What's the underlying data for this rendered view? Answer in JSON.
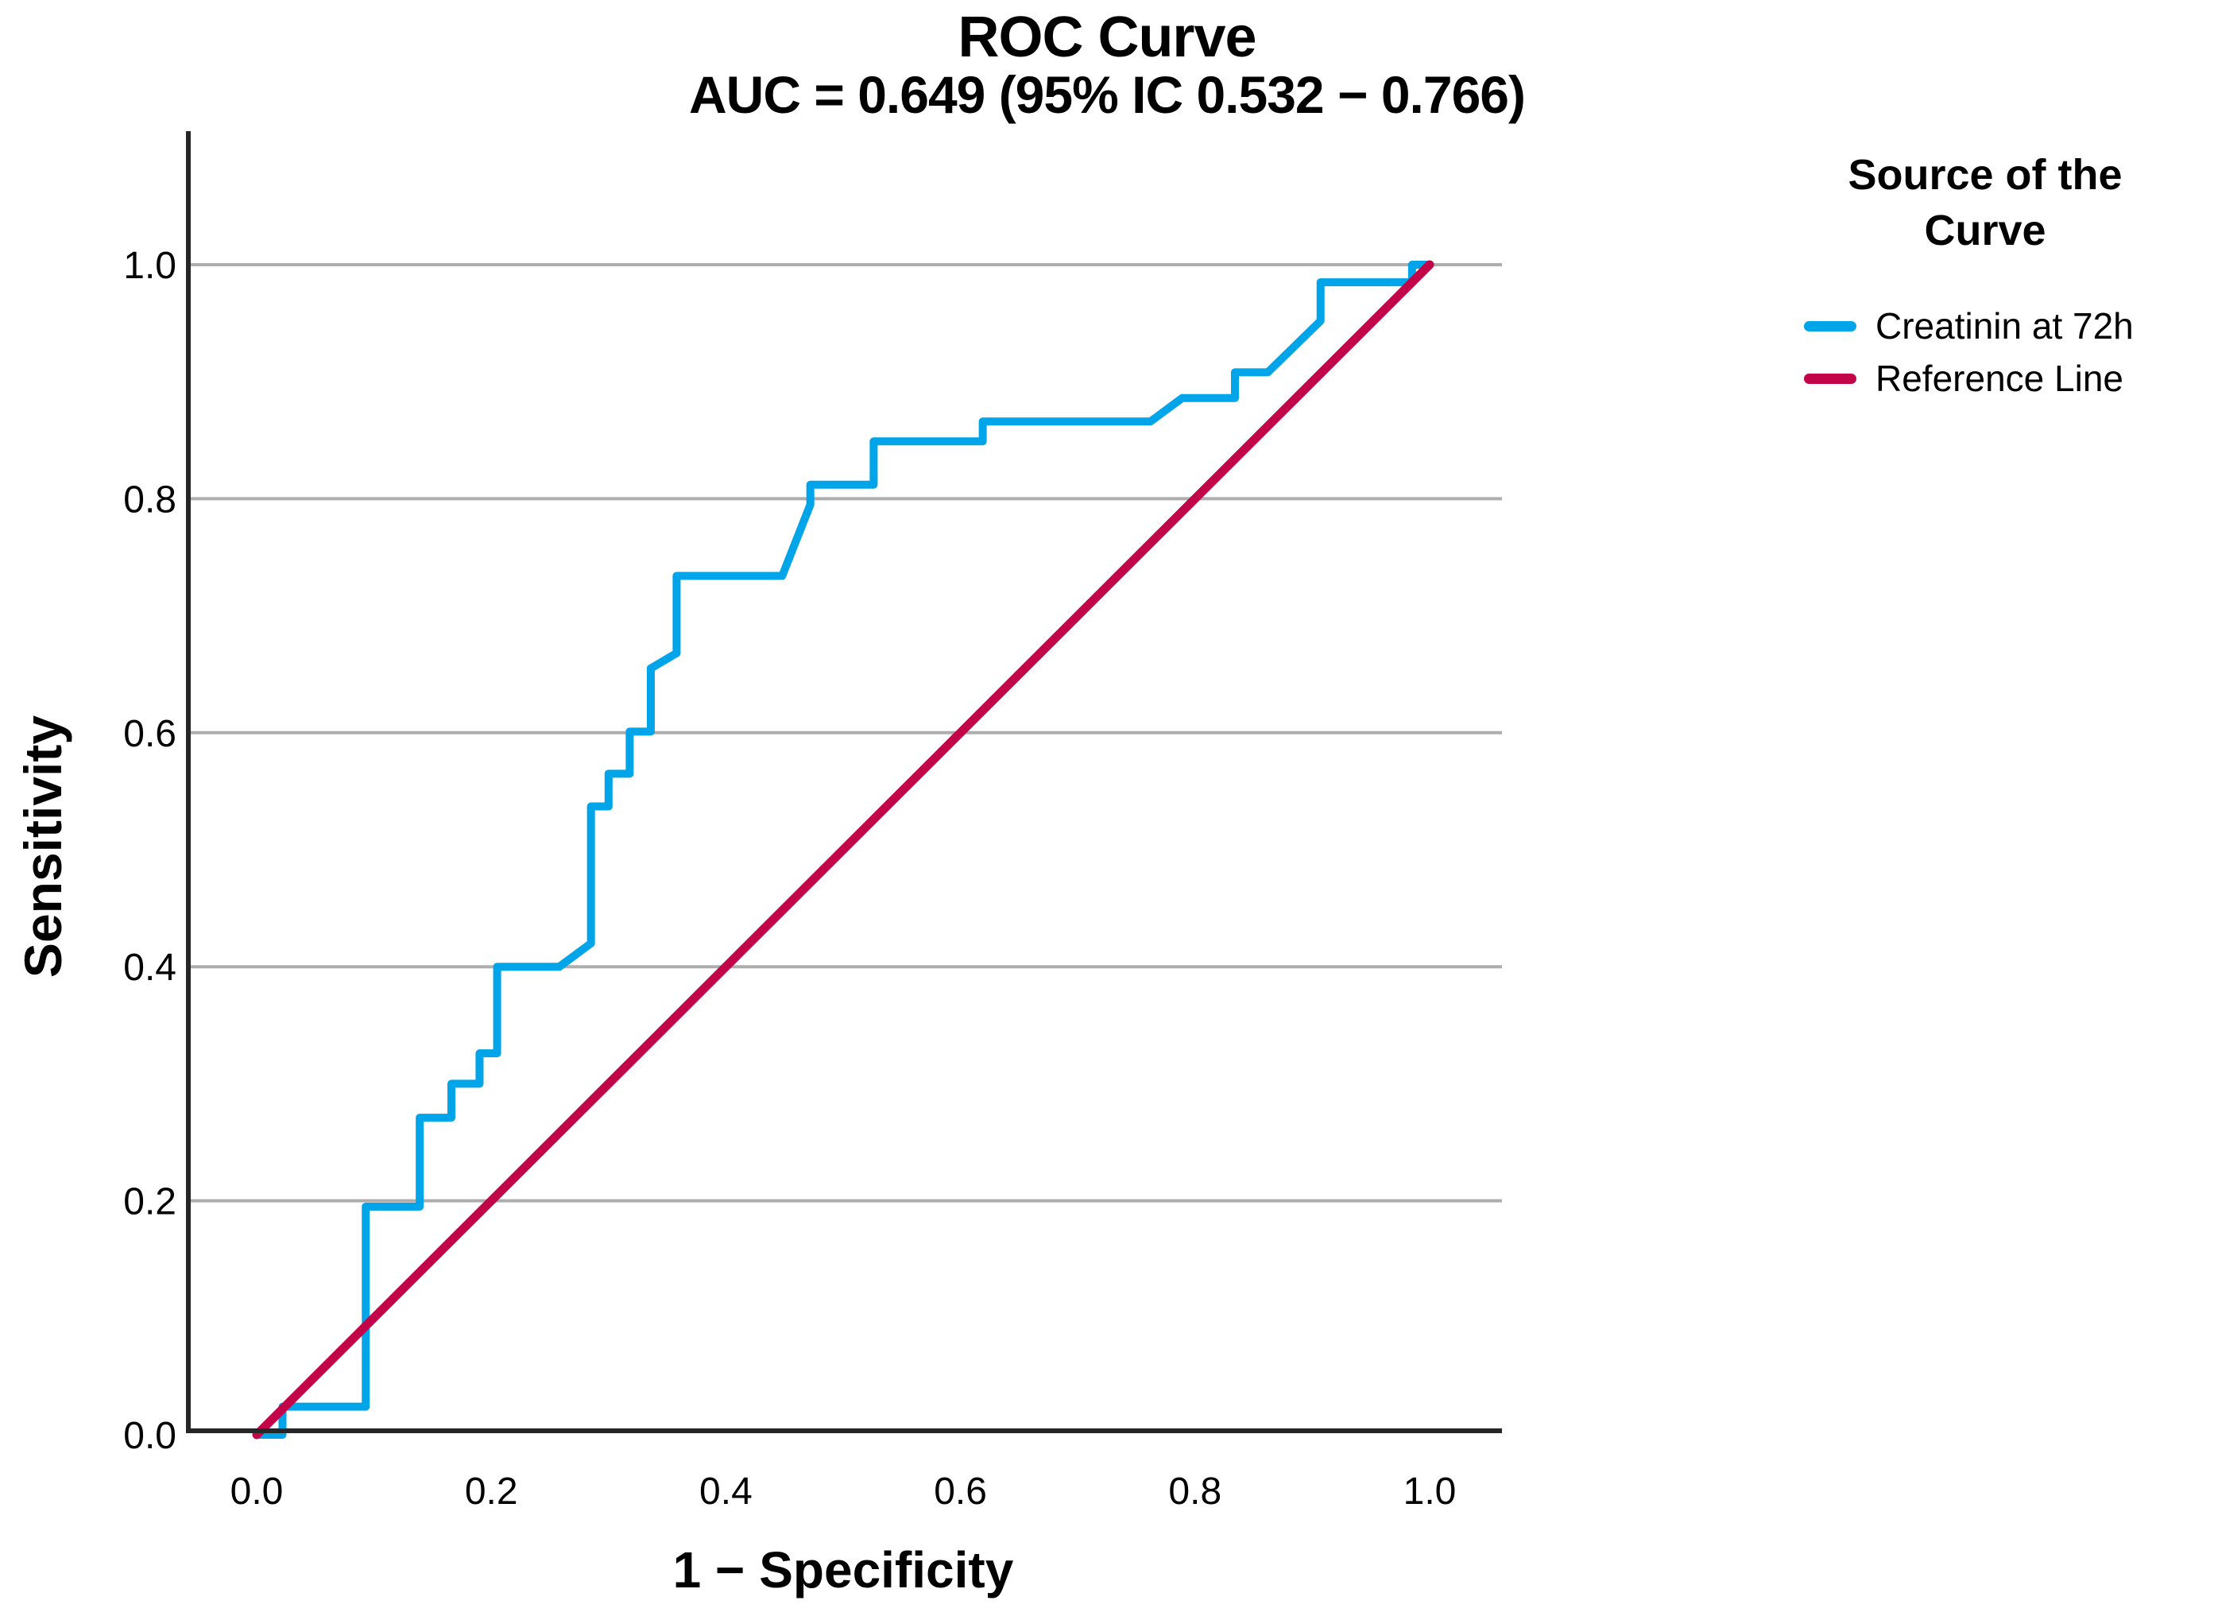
{
  "title": {
    "line1": "ROC Curve",
    "line2": "AUC = 0.649 (95% IC 0.532 − 0.766)"
  },
  "legend": {
    "title": "Source of the Curve",
    "items": [
      {
        "label": "Creatinin at 72h",
        "color": "#00A4E8"
      },
      {
        "label": "Reference Line",
        "color": "#C20549"
      }
    ]
  },
  "axes": {
    "x": {
      "label": "1 − Specificity",
      "tick_labels": [
        "0.0",
        "0.2",
        "0.4",
        "0.6",
        "0.8",
        "1.0"
      ]
    },
    "y": {
      "label": "Sensitivity",
      "tick_labels": [
        "0.0",
        "0.2",
        "0.4",
        "0.6",
        "0.8",
        "1.0"
      ]
    }
  },
  "colors": {
    "curve": "#00A4E8",
    "reference": "#C20549",
    "gridline": "#ADADAD",
    "axis": "#262626",
    "text": "#000000",
    "background": "#FFFFFF"
  },
  "chart_data": {
    "type": "line",
    "title": "ROC Curve",
    "subtitle": "AUC = 0.649 (95% IC 0.532 − 0.766)",
    "auc": 0.649,
    "auc_ci_95": [
      0.532,
      0.766
    ],
    "xlabel": "1 − Specificity",
    "ylabel": "Sensitivity",
    "xlim": [
      0,
      1
    ],
    "ylim": [
      0,
      1
    ],
    "x_ticks": [
      0.0,
      0.2,
      0.4,
      0.6,
      0.8,
      1.0
    ],
    "y_ticks": [
      0.0,
      0.2,
      0.4,
      0.6,
      0.8,
      1.0
    ],
    "grid": "horizontal-only",
    "legend_position": "right",
    "series": [
      {
        "name": "Creatinin at 72h",
        "color": "#00A4E8",
        "points": [
          [
            0.0,
            0.0
          ],
          [
            0.022,
            0.0
          ],
          [
            0.022,
            0.024
          ],
          [
            0.093,
            0.024
          ],
          [
            0.093,
            0.195
          ],
          [
            0.139,
            0.195
          ],
          [
            0.139,
            0.271
          ],
          [
            0.166,
            0.271
          ],
          [
            0.166,
            0.3
          ],
          [
            0.19,
            0.3
          ],
          [
            0.19,
            0.326
          ],
          [
            0.205,
            0.326
          ],
          [
            0.205,
            0.4
          ],
          [
            0.258,
            0.4
          ],
          [
            0.285,
            0.42
          ],
          [
            0.285,
            0.537
          ],
          [
            0.3,
            0.537
          ],
          [
            0.3,
            0.565
          ],
          [
            0.318,
            0.565
          ],
          [
            0.318,
            0.601
          ],
          [
            0.336,
            0.601
          ],
          [
            0.336,
            0.655
          ],
          [
            0.358,
            0.668
          ],
          [
            0.358,
            0.734
          ],
          [
            0.448,
            0.734
          ],
          [
            0.472,
            0.795
          ],
          [
            0.472,
            0.812
          ],
          [
            0.526,
            0.812
          ],
          [
            0.526,
            0.849
          ],
          [
            0.619,
            0.849
          ],
          [
            0.619,
            0.866
          ],
          [
            0.762,
            0.866
          ],
          [
            0.789,
            0.886
          ],
          [
            0.834,
            0.886
          ],
          [
            0.834,
            0.908
          ],
          [
            0.862,
            0.908
          ],
          [
            0.907,
            0.952
          ],
          [
            0.907,
            0.985
          ],
          [
            0.985,
            0.985
          ],
          [
            0.985,
            1.0
          ],
          [
            1.0,
            1.0
          ]
        ]
      },
      {
        "name": "Reference Line",
        "color": "#C20549",
        "points": [
          [
            0.0,
            0.0
          ],
          [
            1.0,
            1.0
          ]
        ]
      }
    ]
  }
}
